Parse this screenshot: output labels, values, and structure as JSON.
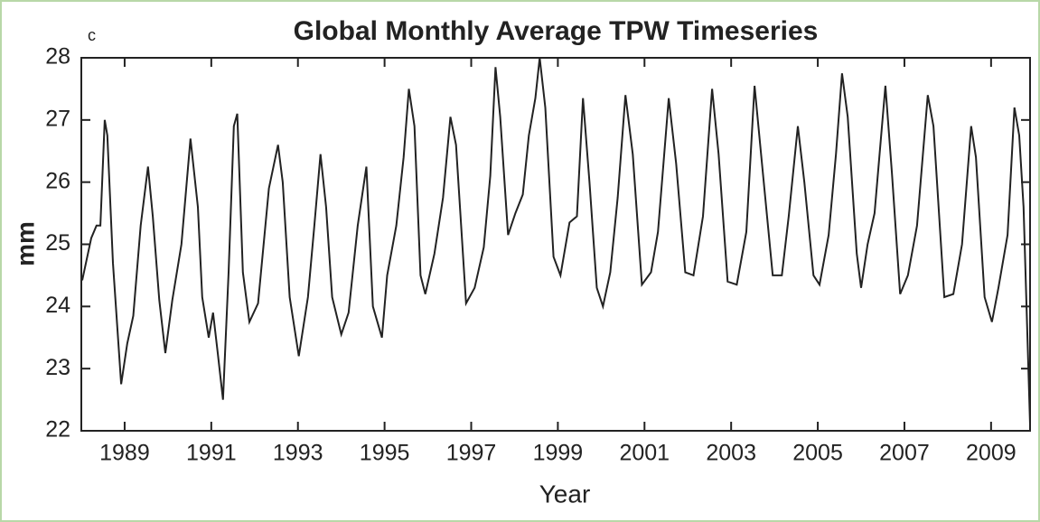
{
  "chart_data": {
    "type": "line",
    "title": "Global Monthly Average TPW Timeseries",
    "panel_label": "c",
    "x_label": "Year",
    "y_label": "mm",
    "xlim": [
      1988.0,
      2009.9
    ],
    "ylim": [
      22,
      28
    ],
    "xticks": [
      1989,
      1991,
      1993,
      1995,
      1997,
      1999,
      2001,
      2003,
      2005,
      2007,
      2009
    ],
    "yticks": [
      22,
      23,
      24,
      25,
      26,
      27,
      28
    ],
    "series": [
      {
        "color": "#222222",
        "x": [
          1988.02,
          1988.23,
          1988.35,
          1988.44,
          1988.54,
          1988.6,
          1988.73,
          1988.92,
          1989.06,
          1989.2,
          1989.37,
          1989.54,
          1989.65,
          1989.8,
          1989.94,
          1990.1,
          1990.31,
          1990.52,
          1990.69,
          1990.79,
          1990.94,
          1991.04,
          1991.15,
          1991.27,
          1991.4,
          1991.52,
          1991.6,
          1991.73,
          1991.88,
          1992.08,
          1992.33,
          1992.54,
          1992.65,
          1992.81,
          1993.02,
          1993.23,
          1993.38,
          1993.52,
          1993.65,
          1993.79,
          1994.0,
          1994.17,
          1994.38,
          1994.58,
          1994.73,
          1994.94,
          1995.06,
          1995.27,
          1995.44,
          1995.56,
          1995.69,
          1995.83,
          1995.94,
          1996.15,
          1996.35,
          1996.52,
          1996.65,
          1996.88,
          1997.08,
          1997.29,
          1997.44,
          1997.56,
          1997.67,
          1997.85,
          1998.02,
          1998.19,
          1998.33,
          1998.48,
          1998.58,
          1998.71,
          1998.9,
          1999.06,
          1999.27,
          1999.44,
          1999.58,
          1999.73,
          1999.9,
          2000.04,
          2000.21,
          2000.38,
          2000.56,
          2000.73,
          2000.94,
          2001.15,
          2001.31,
          2001.56,
          2001.73,
          2001.94,
          2002.13,
          2002.35,
          2002.56,
          2002.71,
          2002.92,
          2003.13,
          2003.35,
          2003.54,
          2003.69,
          2003.96,
          2004.17,
          2004.33,
          2004.54,
          2004.69,
          2004.9,
          2005.04,
          2005.25,
          2005.42,
          2005.56,
          2005.69,
          2005.9,
          2006.0,
          2006.15,
          2006.31,
          2006.56,
          2006.71,
          2006.9,
          2007.08,
          2007.29,
          2007.54,
          2007.67,
          2007.92,
          2008.13,
          2008.33,
          2008.54,
          2008.65,
          2008.85,
          2009.02,
          2009.17,
          2009.38,
          2009.54,
          2009.65,
          2009.75,
          2009.9
        ],
        "values": [
          24.42,
          25.1,
          25.3,
          25.3,
          27.0,
          26.75,
          24.7,
          22.75,
          23.4,
          23.85,
          25.3,
          26.25,
          25.45,
          24.1,
          23.25,
          24.1,
          25.0,
          26.7,
          25.6,
          24.15,
          23.5,
          23.9,
          23.25,
          22.5,
          24.55,
          26.9,
          27.1,
          24.55,
          23.75,
          24.05,
          25.9,
          26.6,
          26.0,
          24.15,
          23.2,
          24.15,
          25.3,
          26.45,
          25.6,
          24.15,
          23.55,
          23.9,
          25.3,
          26.25,
          24.0,
          23.5,
          24.5,
          25.3,
          26.4,
          27.5,
          26.9,
          24.5,
          24.2,
          24.85,
          25.75,
          27.05,
          26.6,
          24.05,
          24.3,
          24.95,
          26.1,
          27.85,
          27.05,
          25.15,
          25.5,
          25.8,
          26.75,
          27.35,
          28.0,
          27.2,
          24.8,
          24.5,
          25.35,
          25.45,
          27.35,
          26.0,
          24.3,
          24.0,
          24.55,
          25.75,
          27.4,
          26.45,
          24.35,
          24.55,
          25.2,
          27.35,
          26.3,
          24.55,
          24.5,
          25.45,
          27.5,
          26.45,
          24.4,
          24.35,
          25.2,
          27.55,
          26.45,
          24.5,
          24.5,
          25.45,
          26.9,
          26.0,
          24.5,
          24.35,
          25.15,
          26.45,
          27.75,
          27.05,
          24.85,
          24.3,
          25.0,
          25.5,
          27.55,
          26.15,
          24.2,
          24.5,
          25.3,
          27.4,
          26.9,
          24.15,
          24.2,
          25.0,
          26.9,
          26.4,
          24.15,
          23.75,
          24.3,
          25.15,
          27.2,
          26.75,
          25.6,
          22.1
        ]
      }
    ]
  }
}
